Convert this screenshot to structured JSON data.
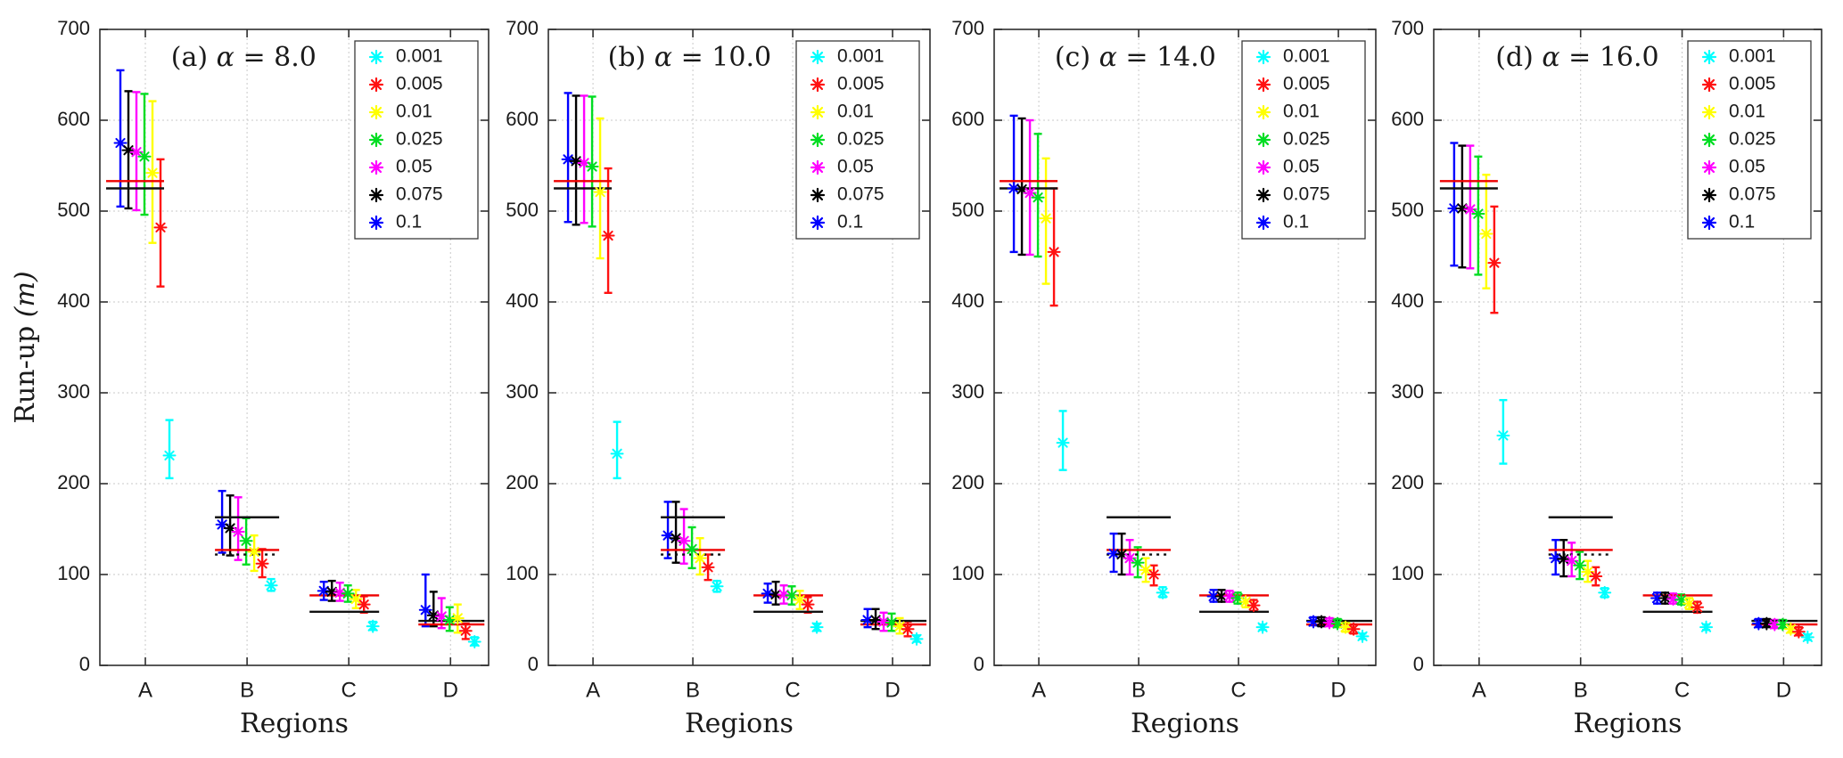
{
  "figure": {
    "ylabel": "Run-up",
    "ylabel_unit": "(m)",
    "xlabel": "Regions",
    "background": "#ffffff",
    "axis_color": "#2e2e2e",
    "grid_color": "#c9c9c9",
    "reference_black": "#111111",
    "reference_red": "#ee0000"
  },
  "legend": [
    {
      "label": "0.001",
      "color": "#00ffff"
    },
    {
      "label": "0.005",
      "color": "#ff1111"
    },
    {
      "label": "0.01",
      "color": "#ffff00"
    },
    {
      "label": "0.025",
      "color": "#00dd22"
    },
    {
      "label": "0.05",
      "color": "#ff00ff"
    },
    {
      "label": "0.075",
      "color": "#000000"
    },
    {
      "label": "0.1",
      "color": "#0000ff"
    }
  ],
  "chart_data": [
    {
      "type": "errorbar-scatter",
      "title": "(a) α = 8.0",
      "alpha": 8.0,
      "categories": [
        "A",
        "B",
        "C",
        "D"
      ],
      "ylim": [
        0,
        700
      ],
      "yticks": [
        0,
        100,
        200,
        300,
        400,
        500,
        600,
        700
      ],
      "series": [
        {
          "name": "0.1",
          "points": [
            [
              575,
              505,
              655
            ],
            [
              155,
              124,
              192
            ],
            [
              82,
              72,
              92
            ],
            [
              61,
              43,
              100
            ]
          ]
        },
        {
          "name": "0.075",
          "points": [
            [
              567,
              503,
              632
            ],
            [
              151,
              121,
              187
            ],
            [
              81,
              71,
              93
            ],
            [
              55,
              43,
              81
            ]
          ]
        },
        {
          "name": "0.05",
          "points": [
            [
              565,
              501,
              631
            ],
            [
              147,
              116,
              185
            ],
            [
              80,
              71,
              91
            ],
            [
              54,
              41,
              74
            ]
          ]
        },
        {
          "name": "0.025",
          "points": [
            [
              560,
              496,
              629
            ],
            [
              137,
              111,
              162
            ],
            [
              79,
              70,
              88
            ],
            [
              50,
              38,
              64
            ]
          ]
        },
        {
          "name": "0.01",
          "points": [
            [
              542,
              465,
              621
            ],
            [
              125,
              104,
              143
            ],
            [
              73,
              63,
              83
            ],
            [
              52,
              36,
              67
            ]
          ]
        },
        {
          "name": "0.005",
          "points": [
            [
              482,
              417,
              557
            ],
            [
              112,
              97,
              128
            ],
            [
              67,
              58,
              76
            ],
            [
              38,
              29,
              46
            ]
          ]
        },
        {
          "name": "0.001",
          "points": [
            [
              231,
              206,
              270
            ],
            [
              88,
              82,
              95
            ],
            [
              43,
              39,
              48
            ],
            [
              26,
              22,
              31
            ]
          ]
        }
      ],
      "reference_lines": [
        {
          "region": "A",
          "value": 525,
          "color": "black",
          "style": "solid"
        },
        {
          "region": "A",
          "value": 533,
          "color": "red",
          "style": "solid"
        },
        {
          "region": "B",
          "value": 163,
          "color": "black",
          "style": "solid"
        },
        {
          "region": "B",
          "value": 127,
          "color": "red",
          "style": "solid"
        },
        {
          "region": "B",
          "value": 122,
          "color": "black",
          "style": "dotted"
        },
        {
          "region": "C",
          "value": 77,
          "color": "red",
          "style": "solid"
        },
        {
          "region": "C",
          "value": 59,
          "color": "black",
          "style": "solid"
        },
        {
          "region": "D",
          "value": 49,
          "color": "black",
          "style": "solid"
        },
        {
          "region": "D",
          "value": 45,
          "color": "red",
          "style": "solid"
        }
      ]
    },
    {
      "type": "errorbar-scatter",
      "title": "(b) α = 10.0",
      "alpha": 10.0,
      "categories": [
        "A",
        "B",
        "C",
        "D"
      ],
      "ylim": [
        0,
        700
      ],
      "yticks": [
        0,
        100,
        200,
        300,
        400,
        500,
        600,
        700
      ],
      "series": [
        {
          "name": "0.1",
          "points": [
            [
              557,
              488,
              630
            ],
            [
              143,
              118,
              180
            ],
            [
              79,
              69,
              90
            ],
            [
              50,
              42,
              62
            ]
          ]
        },
        {
          "name": "0.075",
          "points": [
            [
              555,
              485,
              627
            ],
            [
              140,
              113,
              180
            ],
            [
              78,
              67,
              92
            ],
            [
              50,
              40,
              62
            ]
          ]
        },
        {
          "name": "0.05",
          "points": [
            [
              553,
              487,
              627
            ],
            [
              137,
              112,
              172
            ],
            [
              78,
              68,
              88
            ],
            [
              48,
              38,
              58
            ]
          ]
        },
        {
          "name": "0.025",
          "points": [
            [
              549,
              483,
              626
            ],
            [
              128,
              107,
              152
            ],
            [
              77,
              67,
              87
            ],
            [
              47,
              38,
              57
            ]
          ]
        },
        {
          "name": "0.01",
          "points": [
            [
              521,
              448,
              602
            ],
            [
              118,
              100,
              140
            ],
            [
              72,
              62,
              82
            ],
            [
              43,
              35,
              52
            ]
          ]
        },
        {
          "name": "0.005",
          "points": [
            [
              473,
              410,
              547
            ],
            [
              108,
              94,
              122
            ],
            [
              67,
              58,
              75
            ],
            [
              40,
              32,
              48
            ]
          ]
        },
        {
          "name": "0.001",
          "points": [
            [
              233,
              206,
              268
            ],
            [
              87,
              81,
              93
            ],
            [
              42,
              38,
              46
            ],
            [
              29,
              26,
              33
            ]
          ]
        }
      ],
      "reference_lines": [
        {
          "region": "A",
          "value": 525,
          "color": "black",
          "style": "solid"
        },
        {
          "region": "A",
          "value": 533,
          "color": "red",
          "style": "solid"
        },
        {
          "region": "B",
          "value": 163,
          "color": "black",
          "style": "solid"
        },
        {
          "region": "B",
          "value": 127,
          "color": "red",
          "style": "solid"
        },
        {
          "region": "B",
          "value": 122,
          "color": "black",
          "style": "dotted"
        },
        {
          "region": "C",
          "value": 77,
          "color": "red",
          "style": "solid"
        },
        {
          "region": "C",
          "value": 59,
          "color": "black",
          "style": "solid"
        },
        {
          "region": "D",
          "value": 49,
          "color": "black",
          "style": "solid"
        },
        {
          "region": "D",
          "value": 45,
          "color": "red",
          "style": "solid"
        }
      ]
    },
    {
      "type": "errorbar-scatter",
      "title": "(c) α = 14.0",
      "alpha": 14.0,
      "categories": [
        "A",
        "B",
        "C",
        "D"
      ],
      "ylim": [
        0,
        700
      ],
      "yticks": [
        0,
        100,
        200,
        300,
        400,
        500,
        600,
        700
      ],
      "series": [
        {
          "name": "0.1",
          "points": [
            [
              525,
              455,
              605
            ],
            [
              123,
              103,
              145
            ],
            [
              76,
              70,
              83
            ],
            [
              48,
              44,
              53
            ]
          ]
        },
        {
          "name": "0.075",
          "points": [
            [
              524,
              452,
              602
            ],
            [
              122,
              100,
              145
            ],
            [
              76,
              70,
              83
            ],
            [
              48,
              43,
              53
            ]
          ]
        },
        {
          "name": "0.05",
          "points": [
            [
              520,
              452,
              600
            ],
            [
              118,
              100,
              138
            ],
            [
              76,
              70,
              82
            ],
            [
              47,
              43,
              52
            ]
          ]
        },
        {
          "name": "0.025",
          "points": [
            [
              515,
              450,
              585
            ],
            [
              113,
              97,
              130
            ],
            [
              74,
              68,
              80
            ],
            [
              46,
              42,
              51
            ]
          ]
        },
        {
          "name": "0.01",
          "points": [
            [
              492,
              420,
              558
            ],
            [
              105,
              92,
              118
            ],
            [
              70,
              64,
              77
            ],
            [
              42,
              37,
              47
            ]
          ]
        },
        {
          "name": "0.005",
          "points": [
            [
              455,
              396,
              525
            ],
            [
              100,
              88,
              110
            ],
            [
              66,
              60,
              72
            ],
            [
              40,
              35,
              45
            ]
          ]
        },
        {
          "name": "0.001",
          "points": [
            [
              245,
              215,
              280
            ],
            [
              80,
              75,
              86
            ],
            [
              42,
              39,
              45
            ],
            [
              32,
              29,
              35
            ]
          ]
        }
      ],
      "reference_lines": [
        {
          "region": "A",
          "value": 525,
          "color": "black",
          "style": "solid"
        },
        {
          "region": "A",
          "value": 533,
          "color": "red",
          "style": "solid"
        },
        {
          "region": "B",
          "value": 163,
          "color": "black",
          "style": "solid"
        },
        {
          "region": "B",
          "value": 127,
          "color": "red",
          "style": "solid"
        },
        {
          "region": "B",
          "value": 122,
          "color": "black",
          "style": "dotted"
        },
        {
          "region": "C",
          "value": 77,
          "color": "red",
          "style": "solid"
        },
        {
          "region": "C",
          "value": 59,
          "color": "black",
          "style": "solid"
        },
        {
          "region": "D",
          "value": 49,
          "color": "black",
          "style": "solid"
        },
        {
          "region": "D",
          "value": 45,
          "color": "red",
          "style": "solid"
        }
      ]
    },
    {
      "type": "errorbar-scatter",
      "title": "(d) α = 16.0",
      "alpha": 16.0,
      "categories": [
        "A",
        "B",
        "C",
        "D"
      ],
      "ylim": [
        0,
        700
      ],
      "yticks": [
        0,
        100,
        200,
        300,
        400,
        500,
        600,
        700
      ],
      "series": [
        {
          "name": "0.1",
          "points": [
            [
              503,
              440,
              575
            ],
            [
              118,
              100,
              138
            ],
            [
              74,
              68,
              80
            ],
            [
              46,
              42,
              51
            ]
          ]
        },
        {
          "name": "0.075",
          "points": [
            [
              503,
              438,
              572
            ],
            [
              117,
              98,
              138
            ],
            [
              74,
              68,
              80
            ],
            [
              46,
              42,
              51
            ]
          ]
        },
        {
          "name": "0.05",
          "points": [
            [
              502,
              437,
              572
            ],
            [
              115,
              98,
              135
            ],
            [
              73,
              68,
              79
            ],
            [
              45,
              41,
              50
            ]
          ]
        },
        {
          "name": "0.025",
          "points": [
            [
              497,
              430,
              560
            ],
            [
              110,
              95,
              125
            ],
            [
              72,
              67,
              78
            ],
            [
              45,
              41,
              50
            ]
          ]
        },
        {
          "name": "0.01",
          "points": [
            [
              475,
              415,
              540
            ],
            [
              103,
              92,
              115
            ],
            [
              68,
              62,
              74
            ],
            [
              40,
              36,
              45
            ]
          ]
        },
        {
          "name": "0.005",
          "points": [
            [
              443,
              388,
              505
            ],
            [
              98,
              88,
              108
            ],
            [
              64,
              58,
              70
            ],
            [
              37,
              33,
              42
            ]
          ]
        },
        {
          "name": "0.001",
          "points": [
            [
              253,
              222,
              292
            ],
            [
              80,
              75,
              85
            ],
            [
              42,
              39,
              45
            ],
            [
              31,
              28,
              34
            ]
          ]
        }
      ],
      "reference_lines": [
        {
          "region": "A",
          "value": 525,
          "color": "black",
          "style": "solid"
        },
        {
          "region": "A",
          "value": 533,
          "color": "red",
          "style": "solid"
        },
        {
          "region": "B",
          "value": 163,
          "color": "black",
          "style": "solid"
        },
        {
          "region": "B",
          "value": 127,
          "color": "red",
          "style": "solid"
        },
        {
          "region": "B",
          "value": 122,
          "color": "black",
          "style": "dotted"
        },
        {
          "region": "C",
          "value": 77,
          "color": "red",
          "style": "solid"
        },
        {
          "region": "C",
          "value": 59,
          "color": "black",
          "style": "solid"
        },
        {
          "region": "D",
          "value": 49,
          "color": "black",
          "style": "solid"
        },
        {
          "region": "D",
          "value": 45,
          "color": "red",
          "style": "solid"
        }
      ]
    }
  ]
}
